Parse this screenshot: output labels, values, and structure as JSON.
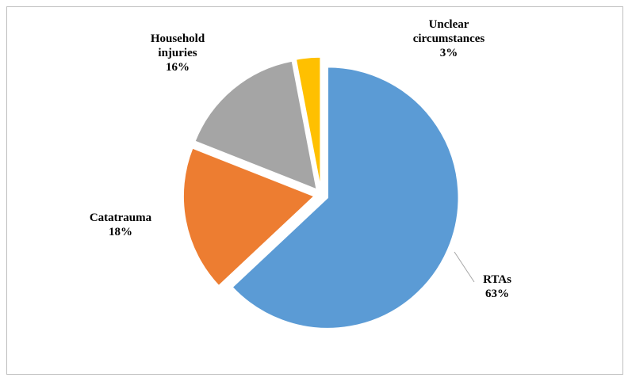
{
  "chart_data": {
    "type": "pie",
    "categories": [
      "RTAs",
      "Catatrauma",
      "Household injuries",
      "Unclear circumstances"
    ],
    "values": [
      63,
      18,
      16,
      3
    ],
    "value_labels": [
      "63%",
      "18%",
      "16%",
      "3%"
    ],
    "colors": [
      "#5b9bd5",
      "#ed7d31",
      "#a5a5a5",
      "#ffc000"
    ]
  }
}
